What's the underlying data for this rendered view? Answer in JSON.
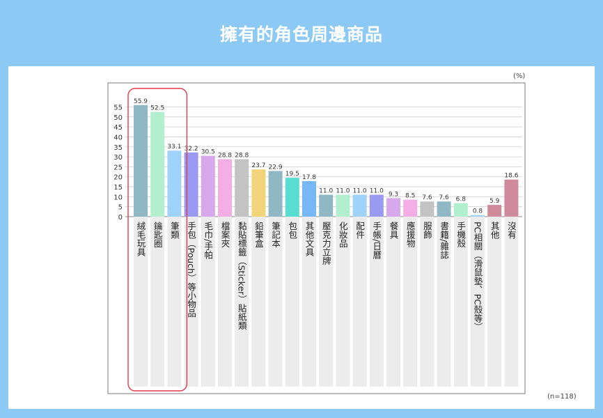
{
  "page": {
    "title": "擁有的角色周邊商品",
    "unit": "(%)",
    "sample": "(n=118)"
  },
  "chart_data": {
    "type": "bar",
    "title": "擁有的角色周邊商品",
    "ylim": [
      0,
      55
    ],
    "yticks": [
      0,
      5,
      10,
      15,
      20,
      25,
      30,
      35,
      40,
      45,
      50,
      55
    ],
    "grid": true,
    "highlighted_categories": [
      "絨毛玩具",
      "鑰匙圈",
      "筆類"
    ],
    "categories": [
      "絨毛玩具",
      "鑰匙圈",
      "筆類",
      "手包（Pouch）等小物品",
      "毛巾/手帕",
      "檔案夾",
      "黏貼標籤（Sticker）貼紙類",
      "鉛筆盒",
      "筆記本",
      "包包",
      "其他文具",
      "壓克力立牌",
      "化妝品",
      "配件",
      "手帳/日曆",
      "餐具",
      "應援物",
      "服飾",
      "書籍/雜誌",
      "手機殼",
      "PC相關（滑鼠墊、PC殼等）",
      "其他",
      "沒有"
    ],
    "values": [
      55.9,
      52.5,
      33.1,
      32.2,
      30.5,
      28.8,
      28.8,
      23.7,
      22.9,
      19.5,
      17.8,
      11.0,
      11.0,
      11.0,
      11.0,
      9.3,
      8.5,
      7.6,
      7.6,
      6.8,
      0.8,
      5.9,
      18.6
    ],
    "value_labels": [
      "55.9",
      "52.5",
      "33.1",
      "32.2",
      "30.5",
      "28.8",
      "28.8",
      "23.7",
      "22.9",
      "19.5",
      "17.8",
      "11.0",
      "11.0",
      "11.0",
      "11.0",
      "9.3",
      "8.5",
      "7.6",
      "7.6",
      "6.8",
      "0.8",
      "5.9",
      "18.6"
    ],
    "colors": [
      "#8fb8c4",
      "#b2efcf",
      "#9fd3fa",
      "#9a9af5",
      "#d7a8ec",
      "#f5aee4",
      "#c3c3c3",
      "#f2d57a",
      "#8fb8c4",
      "#57ded1",
      "#77b7f5",
      "#8fb8c4",
      "#b2efcf",
      "#9fd3fa",
      "#9a9af5",
      "#d7a8ec",
      "#f5aee4",
      "#c3c3c3",
      "#8fb8c4",
      "#b2efcf",
      "#9fd3fa",
      "#cf8a9c",
      "#cf8a9c"
    ]
  }
}
